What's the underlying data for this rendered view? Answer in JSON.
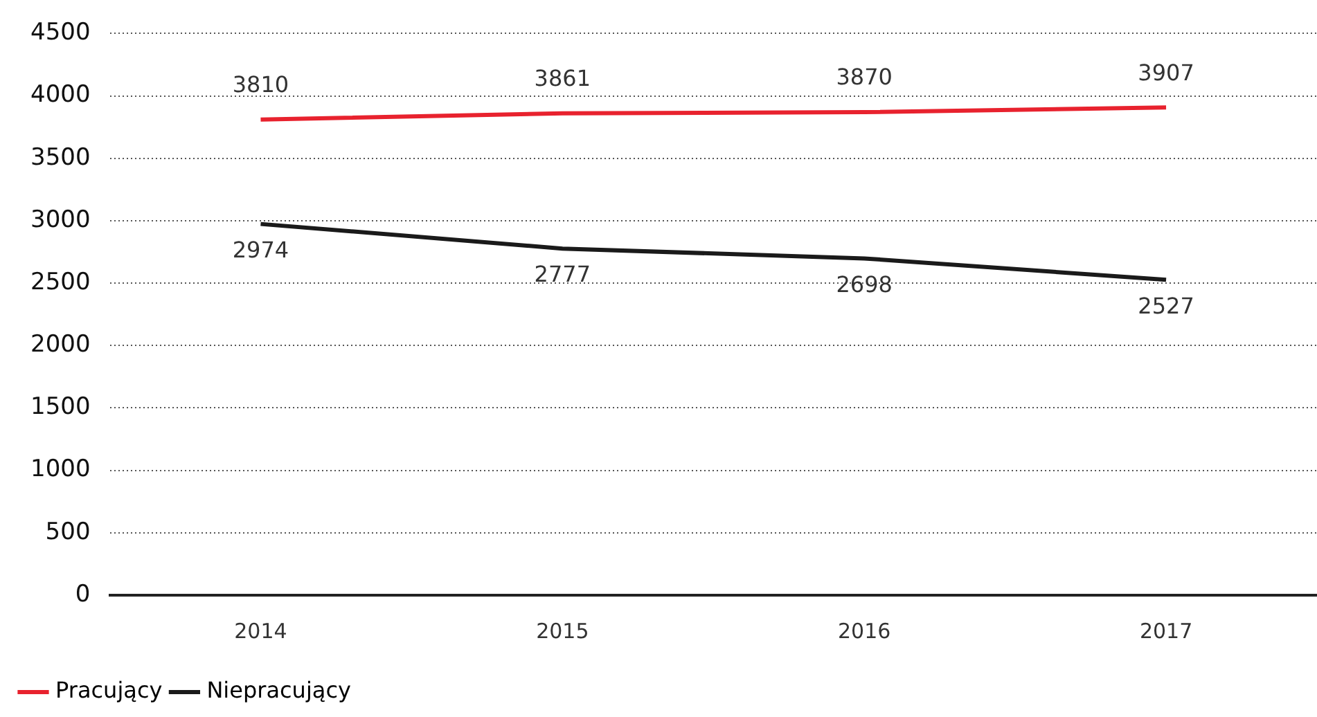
{
  "chart_data": {
    "type": "line",
    "categories": [
      "2014",
      "2015",
      "2016",
      "2017"
    ],
    "series": [
      {
        "name": "Pracujący",
        "color": "#e8222e",
        "values": [
          3810,
          3861,
          3870,
          3907
        ]
      },
      {
        "name": "Niepracujący",
        "color": "#1a1a1a",
        "values": [
          2974,
          2777,
          2698,
          2527
        ]
      }
    ],
    "ylim": [
      0,
      4500
    ],
    "yticks": [
      0,
      500,
      1000,
      1500,
      2000,
      2500,
      3000,
      3500,
      4000,
      4500
    ],
    "grid": "y",
    "legend": "bottom left",
    "data_labels": true,
    "marker": "none",
    "line_style": "solid"
  }
}
